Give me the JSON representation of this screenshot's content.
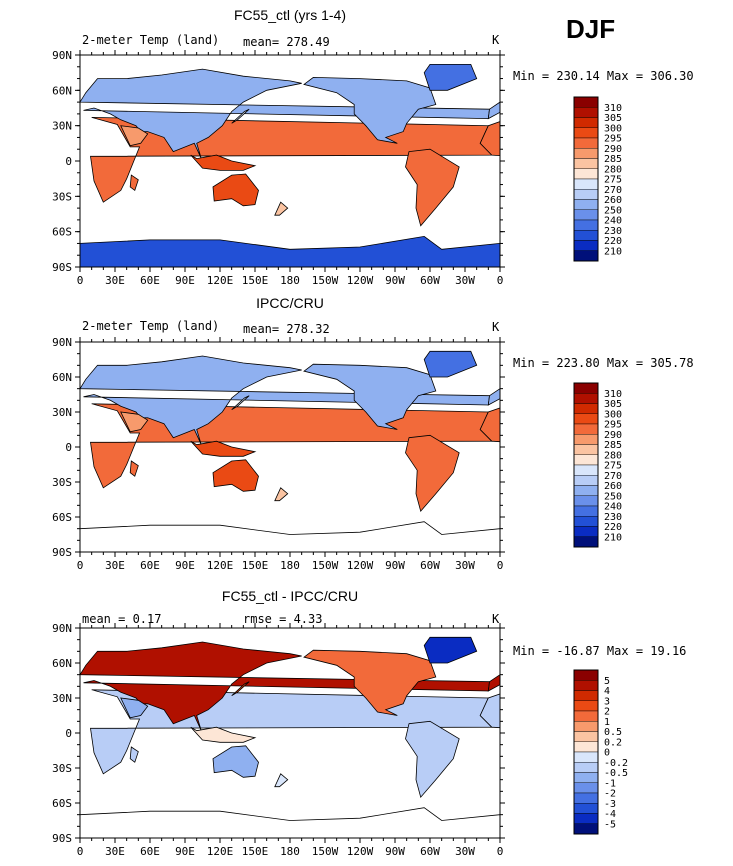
{
  "season": "DJF",
  "unit": "K",
  "x_ticks": [
    "0",
    "30E",
    "60E",
    "90E",
    "120E",
    "150E",
    "180",
    "150W",
    "120W",
    "90W",
    "60W",
    "30W",
    "0"
  ],
  "y_ticks": [
    "90N",
    "60N",
    "30N",
    "0",
    "30S",
    "60S",
    "90S"
  ],
  "panels": [
    {
      "title": "FC55_ctl (yrs 1-4)",
      "left_label": "2-meter Temp (land)",
      "stat_text": "mean= 278.49",
      "minmax": "Min = 230.14 Max = 306.30",
      "levels": [
        "310",
        "305",
        "300",
        "295",
        "290",
        "285",
        "280",
        "275",
        "270",
        "260",
        "250",
        "240",
        "230",
        "220",
        "210"
      ],
      "colors": [
        "#8a0000",
        "#b01000",
        "#d02a00",
        "#ea4a14",
        "#f26a3a",
        "#f79a6c",
        "#fbc4a2",
        "#fde6d6",
        "#d9e6fb",
        "#b8cdf6",
        "#8fb0f0",
        "#6a90ea",
        "#4470e2",
        "#2250d6",
        "#0a2cc2",
        "#00107a"
      ],
      "chart_data": {
        "type": "heatmap",
        "variable": "2-meter Temp (land)",
        "units": "K",
        "mean": 278.49,
        "min": 230.14,
        "max": 306.3
      }
    },
    {
      "title": "IPCC/CRU",
      "left_label": "2-meter Temp (land)",
      "stat_text": "mean= 278.32",
      "minmax": "Min = 223.80 Max = 305.78",
      "levels": [
        "310",
        "305",
        "300",
        "295",
        "290",
        "285",
        "280",
        "275",
        "270",
        "260",
        "250",
        "240",
        "230",
        "220",
        "210"
      ],
      "colors": [
        "#8a0000",
        "#b01000",
        "#d02a00",
        "#ea4a14",
        "#f26a3a",
        "#f79a6c",
        "#fbc4a2",
        "#fde6d6",
        "#d9e6fb",
        "#b8cdf6",
        "#8fb0f0",
        "#6a90ea",
        "#4470e2",
        "#2250d6",
        "#0a2cc2",
        "#00107a"
      ],
      "chart_data": {
        "type": "heatmap",
        "variable": "2-meter Temp (land)",
        "units": "K",
        "mean": 278.32,
        "min": 223.8,
        "max": 305.78
      }
    },
    {
      "title": "FC55_ctl - IPCC/CRU",
      "left_label": "mean =    0.17",
      "stat_text": "rmse =    4.33",
      "minmax": "Min = -16.87 Max =  19.16",
      "levels": [
        "5",
        "4",
        "3",
        "2",
        "1",
        "0.5",
        "0.2",
        "0",
        "-0.2",
        "-0.5",
        "-1",
        "-2",
        "-3",
        "-4",
        "-5"
      ],
      "colors": [
        "#8a0000",
        "#b01000",
        "#d02a00",
        "#ea4a14",
        "#f26a3a",
        "#f79a6c",
        "#fbc4a2",
        "#fde6d6",
        "#d9e6fb",
        "#b8cdf6",
        "#8fb0f0",
        "#6a90ea",
        "#4470e2",
        "#2250d6",
        "#0a2cc2",
        "#00107a"
      ],
      "chart_data": {
        "type": "heatmap",
        "variable": "difference",
        "units": "K",
        "mean": 0.17,
        "rmse": 4.33,
        "min": -16.87,
        "max": 19.16
      }
    }
  ]
}
